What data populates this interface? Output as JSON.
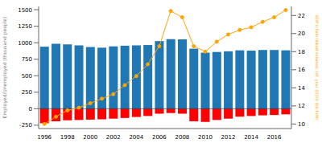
{
  "chart_data": {
    "type": "bar",
    "categories": [
      "1996",
      null,
      "1998",
      null,
      "2000",
      null,
      "2002",
      null,
      "2004",
      null,
      "2006",
      null,
      "2008",
      null,
      "2010",
      null,
      "2012",
      null,
      "2014",
      null,
      "2016",
      null
    ],
    "ylabel": "Employed/Unemployed (thousand people)",
    "y2label": "GDP (chain-linked volumes, ref. year 2010) (bn EUR)",
    "stacked": true,
    "series": [
      {
        "type": "bar",
        "color": "#1f77b4",
        "values": [
          940,
          985,
          975,
          960,
          935,
          925,
          945,
          955,
          960,
          965,
          1025,
          1055,
          1050,
          910,
          850,
          860,
          870,
          885,
          880,
          890,
          890,
          885
        ]
      },
      {
        "type": "bar",
        "color": "#ff0000",
        "values": [
          -220,
          -190,
          -175,
          -170,
          -165,
          -160,
          -150,
          -140,
          -125,
          -110,
          -75,
          -65,
          -75,
          -190,
          -200,
          -170,
          -150,
          -120,
          -110,
          -100,
          -95,
          -85
        ]
      },
      {
        "type": "line",
        "axis": "y2",
        "color": "#ffa500",
        "marker": "circle",
        "values": [
          10.0,
          10.8,
          11.5,
          11.8,
          12.3,
          12.8,
          13.3,
          14.3,
          15.3,
          16.6,
          18.6,
          22.5,
          21.8,
          18.6,
          18.0,
          19.1,
          19.9,
          20.4,
          20.7,
          21.3,
          21.8,
          22.6
        ]
      }
    ],
    "ylim": [
      -300,
      1550
    ],
    "yticks": [
      -250,
      0,
      250,
      500,
      750,
      1000,
      1250,
      1500
    ],
    "y2lim": [
      9.5,
      23
    ],
    "y2ticks": [
      10,
      12,
      14,
      16,
      18,
      20,
      22
    ],
    "grid": false
  }
}
